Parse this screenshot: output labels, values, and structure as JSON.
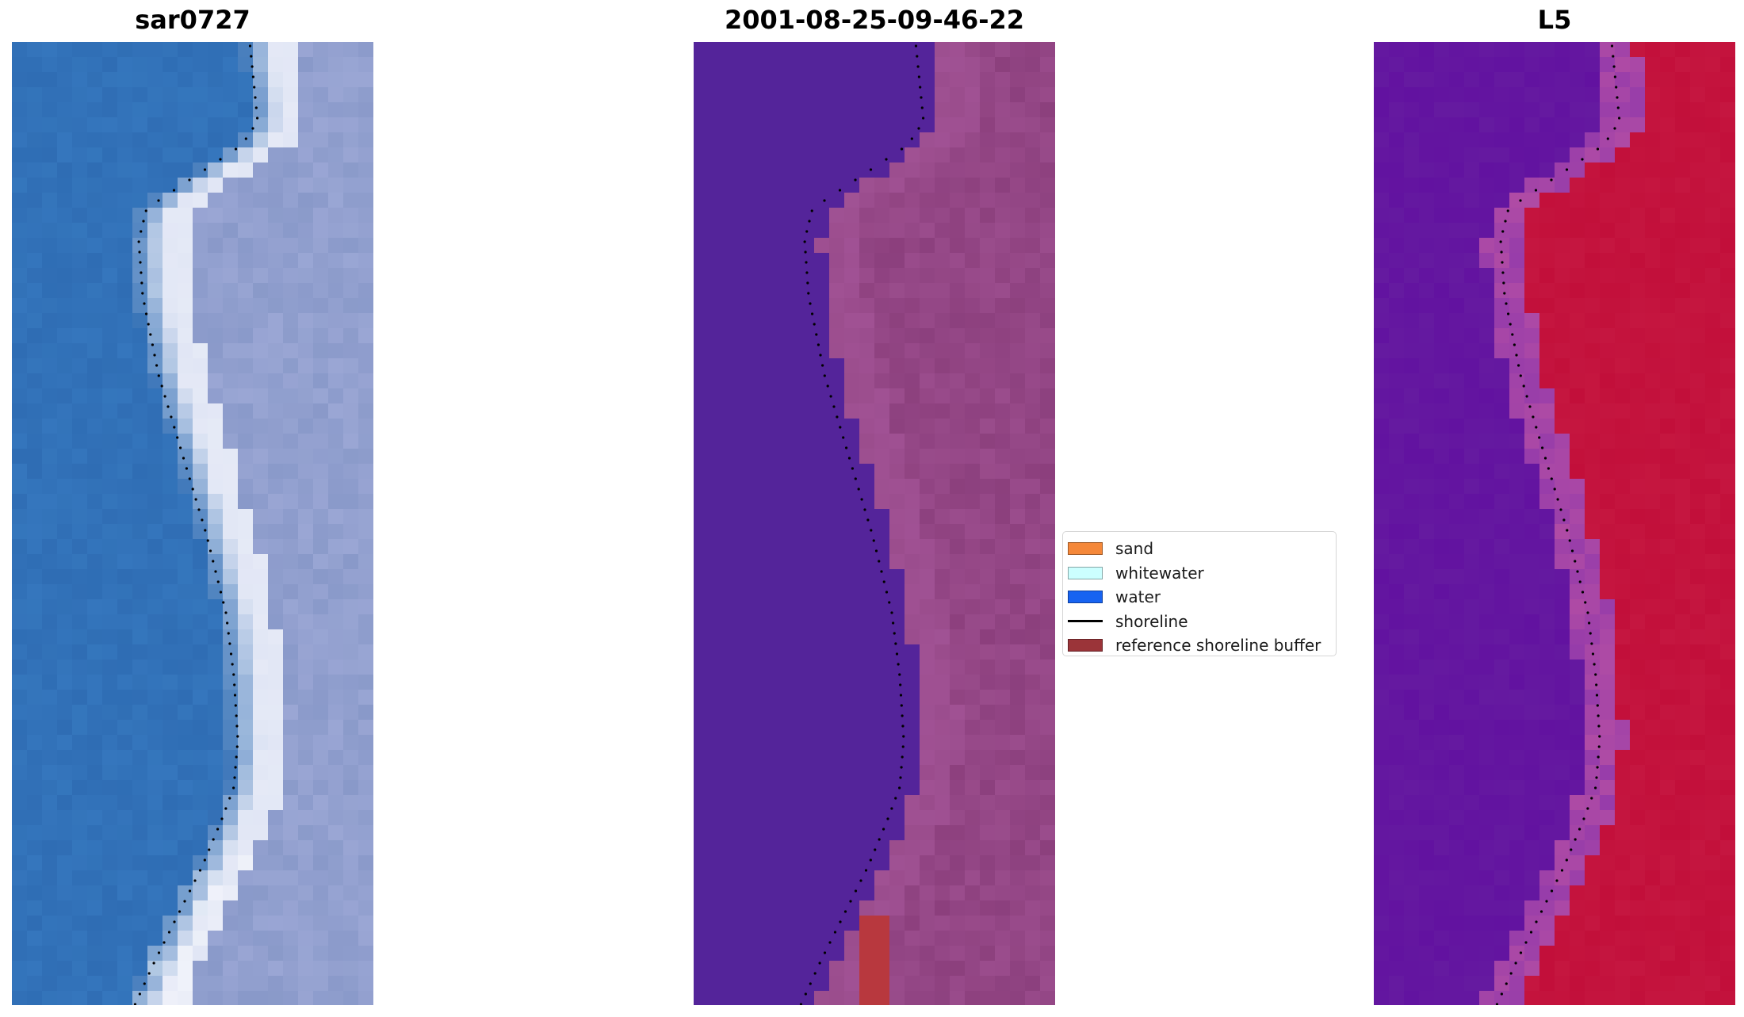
{
  "panels": [
    {
      "title": "sar0727",
      "kind": "rgb"
    },
    {
      "title": "2001-08-25-09-46-22",
      "kind": "class"
    },
    {
      "title": "L5",
      "kind": "mndwi"
    }
  ],
  "legend": {
    "items": [
      {
        "label": "sand",
        "color": "#f5883a",
        "kind": "patch"
      },
      {
        "label": "whitewater",
        "color": "#ccffff",
        "kind": "patch"
      },
      {
        "label": "water",
        "color": "#1763f1",
        "kind": "patch"
      },
      {
        "label": "shoreline",
        "color": "#000000",
        "kind": "line"
      },
      {
        "label": "reference shoreline buffer",
        "color": "#9b3439",
        "kind": "patch"
      }
    ]
  },
  "colors": {
    "water_panel1": "#2f6db4",
    "land_panel1": "#9aa6d4",
    "water_panel2": "#54249a",
    "land_panel2": "#9a4c8c",
    "buffer_panel2": "#b8383e",
    "water_panel3": "#651aa0",
    "land_panel3": "#c20f3a"
  }
}
